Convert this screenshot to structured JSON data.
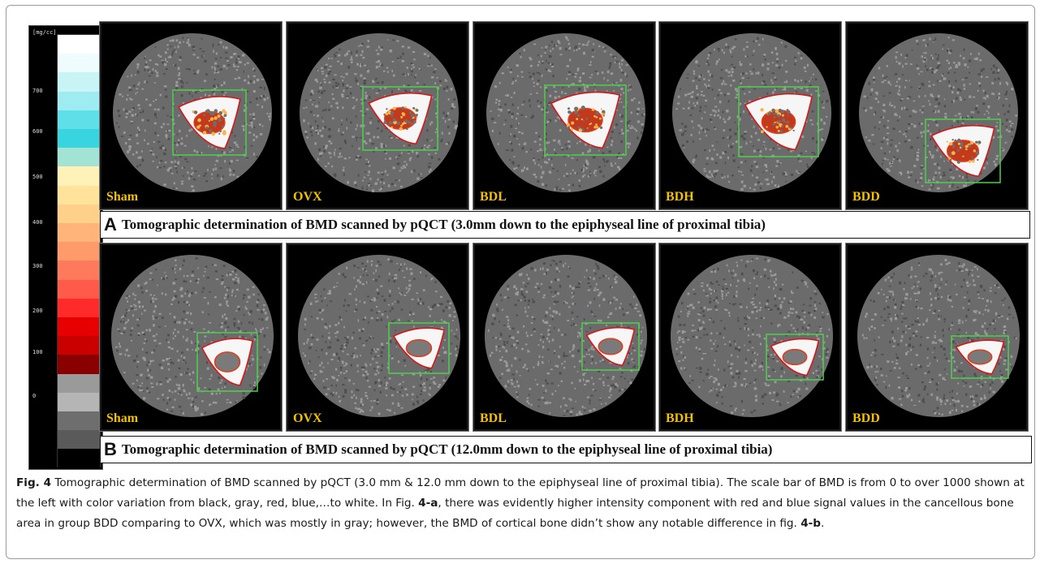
{
  "figure": {
    "scale_bar": {
      "unit_label": "[mg/cc]",
      "ticks": [
        "700",
        "600",
        "500",
        "400",
        "300",
        "200",
        "100",
        "0"
      ],
      "colors": [
        "#ffffff",
        "#eefcfd",
        "#c9f4f6",
        "#9eecf1",
        "#5fdfe8",
        "#38d5e1",
        "#a3e3d4",
        "#fff2b8",
        "#ffe39a",
        "#ffd08a",
        "#ffb57a",
        "#ff9b6a",
        "#ff7a5c",
        "#ff5a4a",
        "#ff2a2a",
        "#e70000",
        "#c80000",
        "#8a0000",
        "#9a9a9a",
        "#b5b5b5",
        "#6e6e6e",
        "#5a5a5a",
        "#000000"
      ]
    },
    "rows": [
      {
        "letter": "A",
        "caption": "Tomographic determination of BMD scanned by pQCT (3.0mm down to the epiphyseal line of proximal tibia)",
        "panels": [
          {
            "label": "Sham"
          },
          {
            "label": "OVX"
          },
          {
            "label": "BDL"
          },
          {
            "label": "BDH"
          },
          {
            "label": "BDD"
          }
        ]
      },
      {
        "letter": "B",
        "caption": "Tomographic determination of BMD scanned by pQCT (12.0mm down to the epiphyseal line of proximal tibia)",
        "panels": [
          {
            "label": "Sham"
          },
          {
            "label": "OVX"
          },
          {
            "label": "BDL"
          },
          {
            "label": "BDH"
          },
          {
            "label": "BDD"
          }
        ]
      }
    ],
    "caption": {
      "label": "Fig. 4",
      "text_1": " Tomographic determination of BMD scanned by pQCT (3.0 mm & 12.0 mm down to the epiphyseal line of proximal tibia). The scale bar of BMD is from 0 to over 1000 shown at the left with color variation from black, gray, red, blue,…to white. In Fig. ",
      "ref_1": "4-a",
      "text_2": ", there was evidently higher intensity component with red and blue signal values in the cancellous bone area in group BDD comparing to OVX, which was mostly in gray; however, the BMD of cortical bone didn’t show any notable difference in fig. ",
      "ref_2": "4-b",
      "text_3": "."
    }
  }
}
